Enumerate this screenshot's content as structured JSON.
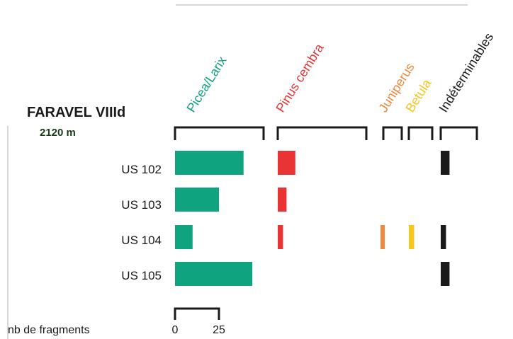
{
  "chart_data": {
    "type": "bar",
    "title": "FARAVEL VIIId",
    "subtitle": "2120 m",
    "categories": [
      "US 102",
      "US 103",
      "US 104",
      "US 105"
    ],
    "series": [
      {
        "name": "Picea/Larix",
        "color": "#10a37f",
        "values": [
          39,
          25,
          10,
          44
        ]
      },
      {
        "name": "Pinus cembra",
        "color": "#e83435",
        "values": [
          10,
          5,
          3,
          0
        ]
      },
      {
        "name": "Juniperus",
        "color": "#ef8a3c",
        "values": [
          0,
          0,
          2,
          0
        ]
      },
      {
        "name": "Betula",
        "color": "#f5c61d",
        "values": [
          0,
          0,
          3,
          0
        ]
      },
      {
        "name": "Indéterminables",
        "color": "#1a1a1a",
        "values": [
          5,
          0,
          3,
          5
        ]
      }
    ],
    "scale": {
      "label": "nb de fragments",
      "ticks": [
        0,
        25
      ]
    },
    "colors": {
      "title": "#1a1a1a",
      "subtitle": "#1b3a1b",
      "axis": "#1a1a1a",
      "frame": "#b0b0b0",
      "text": "#1a1a1a"
    }
  }
}
